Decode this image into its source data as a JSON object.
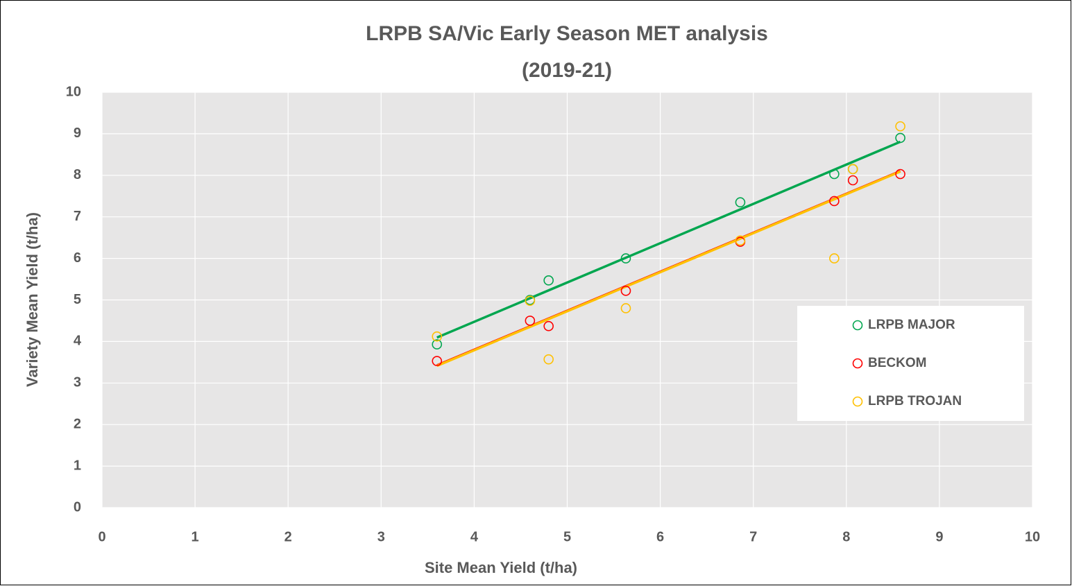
{
  "chart_data": {
    "type": "scatter",
    "title": [
      "LRPB SA/Vic Early Season MET analysis",
      "(2019-21)"
    ],
    "x_label": "Site Mean Yield (t/ha)",
    "y_label": "Variety  Mean Yield (t/ha)",
    "x": [
      3.6,
      4.6,
      4.8,
      5.63,
      6.86,
      7.87,
      8.07,
      8.58
    ],
    "series": [
      {
        "name": "LRPB MAJOR",
        "color": "#00a64f",
        "values": [
          3.93,
          5.0,
          5.47,
          6.0,
          7.35,
          8.03,
          8.15,
          8.9
        ]
      },
      {
        "name": "BECKOM",
        "color": "#ff0000",
        "values": [
          3.53,
          4.5,
          4.37,
          5.22,
          6.4,
          7.38,
          7.88,
          8.03
        ]
      },
      {
        "name": "LRPB TROJAN",
        "color": "#ffc000",
        "values": [
          4.12,
          4.98,
          3.57,
          4.8,
          6.43,
          6.0,
          8.15,
          9.18
        ]
      }
    ],
    "trendline": "linear",
    "xlim": [
      0,
      10
    ],
    "xticks": [
      0,
      1,
      2,
      3,
      4,
      5,
      6,
      7,
      8,
      9,
      10
    ],
    "ylim": [
      0,
      10
    ],
    "yticks": [
      0,
      1,
      2,
      3,
      4,
      5,
      6,
      7,
      8,
      9,
      10
    ],
    "grid": true,
    "legend": "right"
  }
}
